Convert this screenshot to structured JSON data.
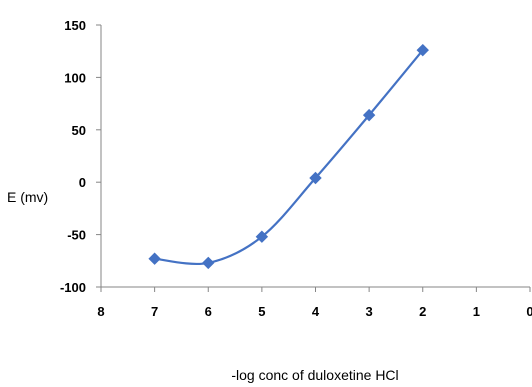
{
  "chart_data": {
    "type": "scatter",
    "title": "",
    "xlabel": "-log conc of duloxetine HCl",
    "ylabel": "E (mv)",
    "x_reversed": true,
    "xlim": [
      0,
      8
    ],
    "ylim": [
      -100,
      150
    ],
    "x_ticks": [
      "8",
      "7",
      "6",
      "5",
      "4",
      "3",
      "2",
      "1",
      "0"
    ],
    "y_ticks": [
      "150",
      "100",
      "50",
      "0",
      "-50",
      "-100"
    ],
    "grid": false,
    "legend": "none",
    "line": "smooth",
    "marker": "diamond",
    "series": [
      {
        "color": "#4472C4",
        "points": [
          {
            "x": 7,
            "y": -73
          },
          {
            "x": 6,
            "y": -77
          },
          {
            "x": 5,
            "y": -52
          },
          {
            "x": 4,
            "y": 4
          },
          {
            "x": 3,
            "y": 64
          },
          {
            "x": 2,
            "y": 126
          }
        ]
      }
    ]
  }
}
